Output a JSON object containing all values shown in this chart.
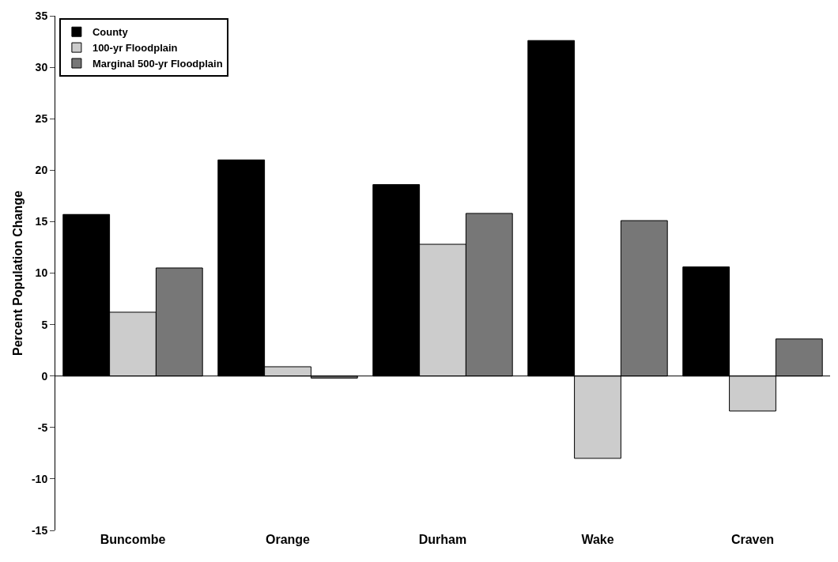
{
  "chart_data": {
    "type": "bar",
    "ylabel": "Percent Population Change",
    "categories": [
      "Buncombe",
      "Orange",
      "Durham",
      "Wake",
      "Craven"
    ],
    "series": [
      {
        "name": "County",
        "color": "#000000",
        "values": [
          15.7,
          21.0,
          18.6,
          32.6,
          10.6
        ]
      },
      {
        "name": "100-yr Floodplain",
        "color": "#cccccc",
        "values": [
          6.2,
          0.9,
          12.8,
          -8.0,
          -3.4
        ]
      },
      {
        "name": "Marginal 500-yr Floodplain",
        "color": "#777777",
        "values": [
          10.5,
          -0.2,
          15.8,
          15.1,
          3.6
        ]
      }
    ],
    "ylim": [
      -15,
      35
    ],
    "yticks": [
      -15,
      -10,
      -5,
      0,
      5,
      10,
      15,
      20,
      25,
      30,
      35
    ],
    "ref_lines": [
      {
        "axis": "y",
        "value": 0,
        "color": "#000000"
      }
    ],
    "grid": false,
    "legend": "top left"
  }
}
